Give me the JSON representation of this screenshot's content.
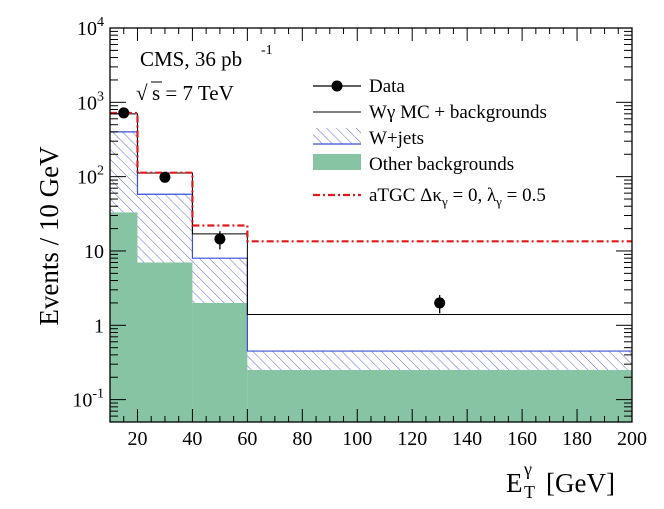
{
  "chart_data": {
    "type": "histogram",
    "xlabel": "E",
    "xlabel_sup": "γ",
    "xlabel_sub": "T",
    "xlabel_unit": "[GeV]",
    "ylabel": "Events / 10 GeV",
    "xlim": [
      10,
      200
    ],
    "ylim": [
      0.05,
      10000
    ],
    "yscale": "log",
    "bin_edges": [
      10,
      20,
      40,
      60,
      200
    ],
    "x_ticks": [
      20,
      40,
      60,
      80,
      100,
      120,
      140,
      160,
      180,
      200
    ],
    "y_ticks": [
      {
        "value": 0.1,
        "label": "10",
        "sup": "-1"
      },
      {
        "value": 1,
        "label": "1",
        "sup": ""
      },
      {
        "value": 10,
        "label": "10",
        "sup": ""
      },
      {
        "value": 100,
        "label": "10",
        "sup": "2"
      },
      {
        "value": 1000,
        "label": "10",
        "sup": "3"
      },
      {
        "value": 10000,
        "label": "10",
        "sup": "4"
      }
    ],
    "annotations": {
      "experiment": "CMS, 36 pb",
      "experiment_sup": "-1",
      "energy_sqrt": "√",
      "energy": "s = 7 TeV"
    },
    "series": [
      {
        "name": "Other backgrounds",
        "kind": "filled",
        "color": "#87c4a3",
        "values": [
          33,
          7,
          2,
          0.25
        ]
      },
      {
        "name": "W+jets",
        "kind": "hatched",
        "color": "#3a4fd6",
        "values": [
          400,
          58,
          8,
          0.45
        ]
      },
      {
        "name": "Wγ MC + backgrounds",
        "kind": "step",
        "color": "#000000",
        "values": [
          700,
          112,
          17,
          1.4
        ]
      },
      {
        "name": "aTGC",
        "kind": "dashdot",
        "color": "#e01a1a",
        "values": [
          720,
          113,
          22,
          13.5
        ]
      },
      {
        "name": "Data",
        "kind": "points",
        "color": "#000000",
        "x": [
          15,
          30,
          50,
          130
        ],
        "values": [
          720,
          98,
          14.5,
          2.0
        ],
        "errors": [
          28,
          10,
          4,
          0.55
        ]
      }
    ],
    "legend": {
      "position": "top-right",
      "entries": [
        {
          "label": "Data"
        },
        {
          "label": "Wγ MC + backgrounds"
        },
        {
          "label": "W+jets"
        },
        {
          "label": "Other backgrounds"
        },
        {
          "label": "aTGC Δκ",
          "sub1": "γ",
          "mid": " = 0, λ",
          "sub2": "γ",
          "tail": " = 0.5"
        }
      ]
    }
  }
}
